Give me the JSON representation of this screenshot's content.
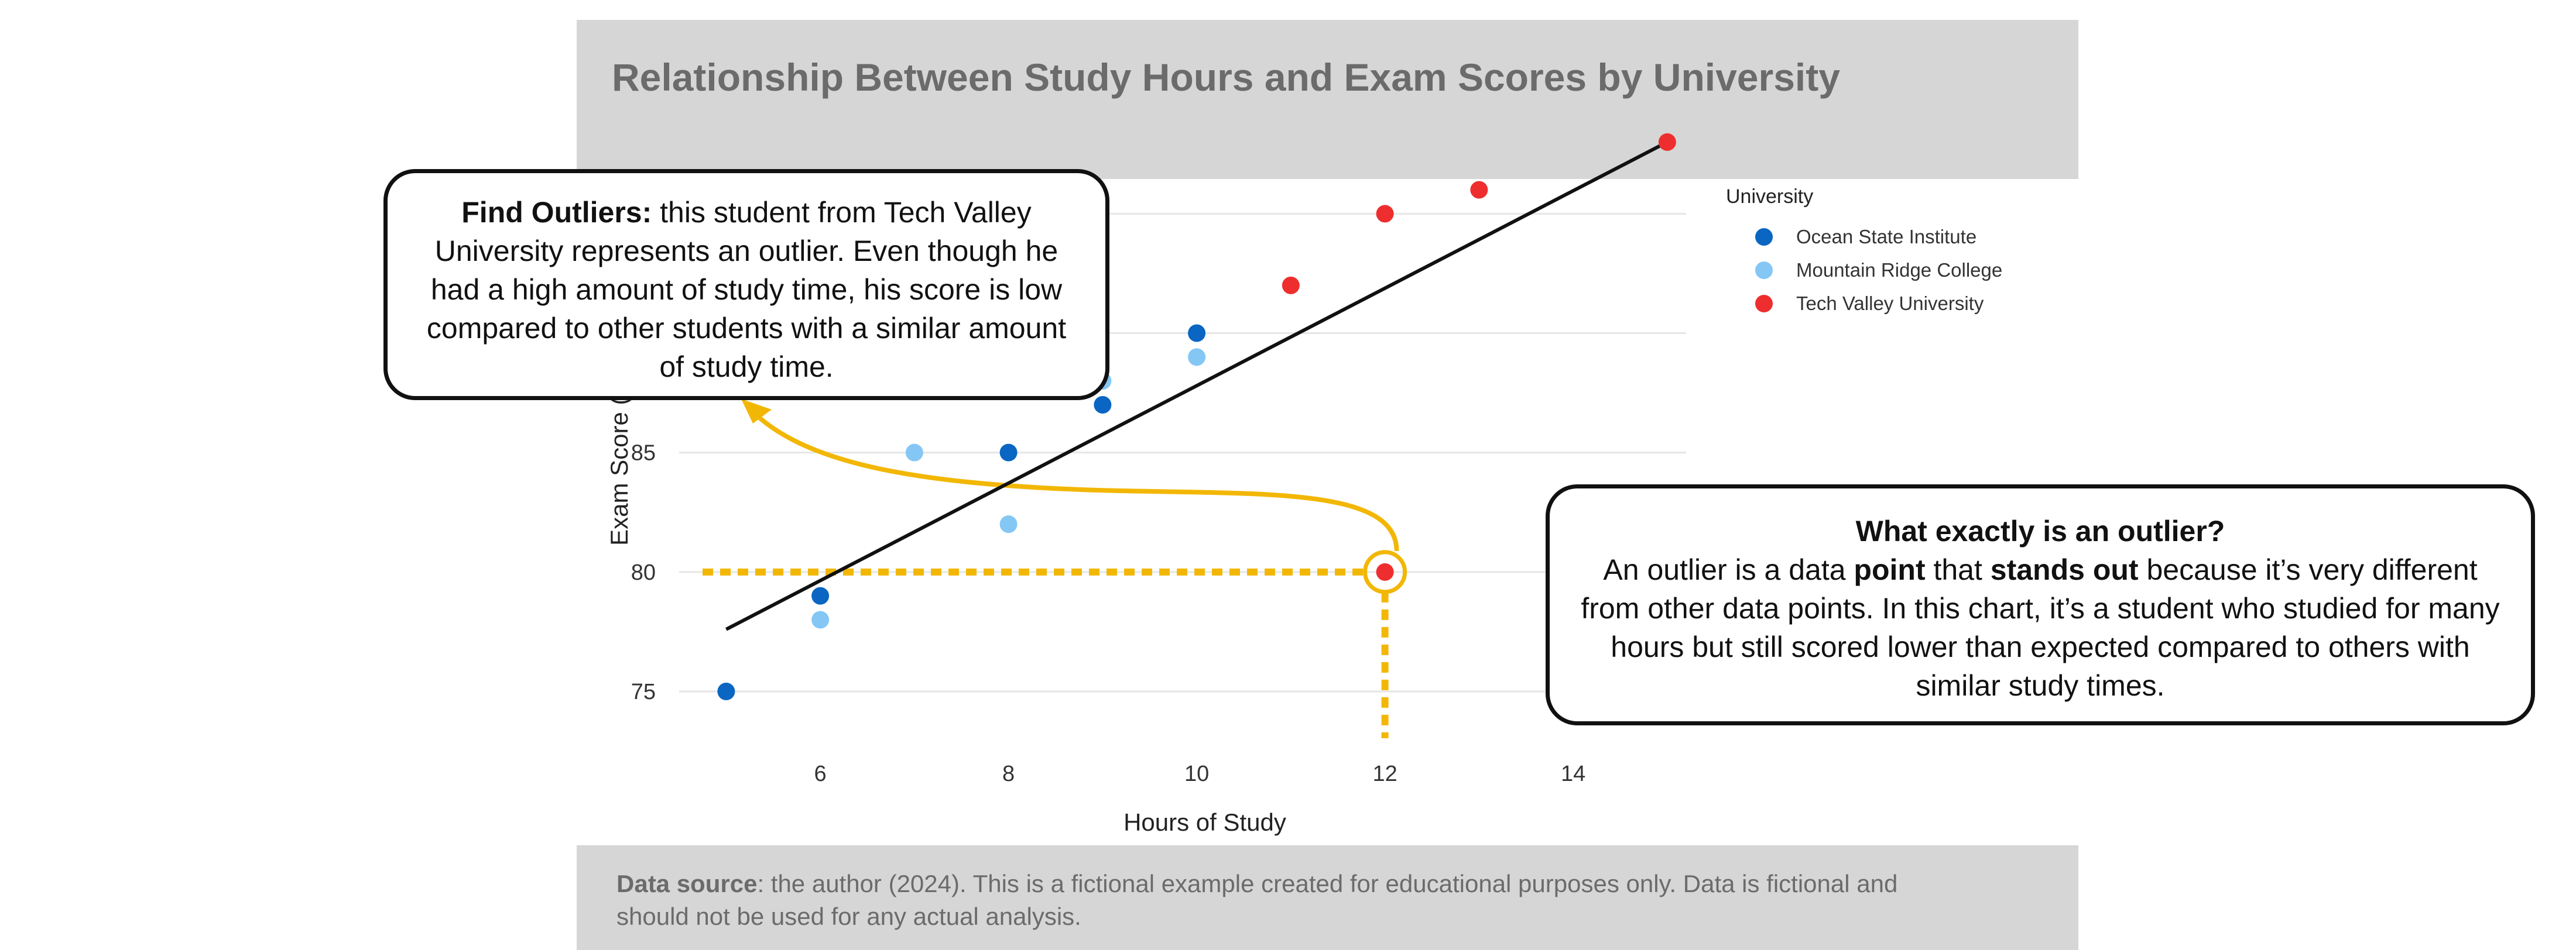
{
  "chart_data": {
    "type": "scatter",
    "title": "Relationship Between Study Hours and Exam Scores by University",
    "xlabel": "Hours of Study",
    "ylabel": "Exam Score (%)",
    "xlim": [
      4.5,
      15.2
    ],
    "ylim": [
      72.6,
      96.6
    ],
    "x_ticks": [
      6,
      8,
      10,
      12,
      14
    ],
    "y_ticks": [
      75,
      80,
      85,
      90,
      95
    ],
    "grid": true,
    "legend": {
      "title": "University",
      "placement": "right"
    },
    "series": [
      {
        "name": "Ocean State Institute",
        "color": "#0a66c2",
        "points": [
          [
            5,
            75
          ],
          [
            6,
            79
          ],
          [
            8,
            85
          ],
          [
            9,
            87
          ],
          [
            10,
            90
          ]
        ]
      },
      {
        "name": "Mountain Ridge College",
        "color": "#84c7f5",
        "points": [
          [
            6,
            78
          ],
          [
            7,
            85
          ],
          [
            8,
            82
          ],
          [
            9,
            88
          ],
          [
            10,
            89
          ]
        ]
      },
      {
        "name": "Tech Valley University",
        "color": "#ee2e2e",
        "points": [
          [
            11,
            92
          ],
          [
            12,
            95
          ],
          [
            13,
            96
          ],
          [
            15,
            98
          ],
          [
            12,
            80
          ]
        ]
      }
    ],
    "trendline": {
      "color": "#111111",
      "from": [
        5,
        77.6
      ],
      "to": [
        15,
        98
      ]
    },
    "highlight": {
      "x": 12,
      "y": 80,
      "color": "#f2b705"
    }
  },
  "callouts": {
    "left": {
      "heading": "Find Outliers:",
      "body": " this student from Tech Valley University represents an outlier. Even though he had a high amount of study time, his score is low compared to other students with a similar amount of study time."
    },
    "right": {
      "heading": "What exactly is an outlier?",
      "text_1": "An outlier is a data ",
      "bold_1": "point",
      "text_2": " that ",
      "bold_2": "stands out",
      "text_3": " because it’s very different from other data points. In this chart, it’s a student who studied for many hours but still scored lower than expected compared to others with similar study times."
    }
  },
  "footer": {
    "label": "Data source",
    "text": ": the author (2024). This is a fictional example created for educational purposes only. Data is fictional and should not be used for any actual analysis."
  },
  "colors": {
    "annotation": "#f2b705",
    "band": "#d6d6d6",
    "band_text": "#6b6b6b"
  }
}
